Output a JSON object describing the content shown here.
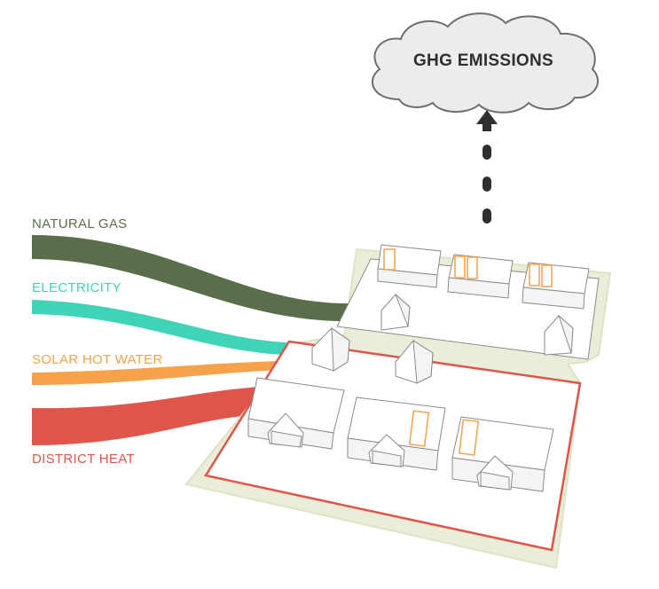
{
  "output": {
    "label": "GHG EMISSIONS"
  },
  "inputs": [
    {
      "key": "gas",
      "label": "NATURAL GAS",
      "color": "#5b6e4b"
    },
    {
      "key": "electricity",
      "label": "ELECTRICITY",
      "color": "#3fd3b7"
    },
    {
      "key": "solar",
      "label": "SOLAR HOT WATER",
      "color": "#f5a24a"
    },
    {
      "key": "district",
      "label": "DISTRICT HEAT",
      "color": "#e0554a"
    }
  ],
  "colors": {
    "site": "#eaeed8",
    "site_outline": "#dde4c6",
    "boundary": "#e0554a",
    "house_wall": "#f4f4f4",
    "house_roof": "#ffffff",
    "house_edge": "#8a8a8a",
    "solar_panel": "#f5a24a",
    "arrow": "#2f2f2f",
    "cloud_fill": "#ececec",
    "cloud_edge": "#6e6e6e"
  }
}
